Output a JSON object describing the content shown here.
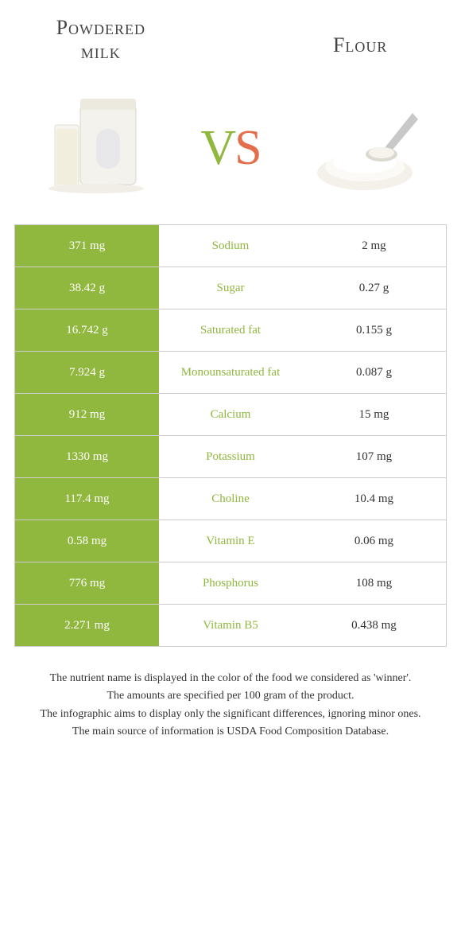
{
  "colors": {
    "left": "#90b73e",
    "right": "#e46e4b",
    "text": "#333333",
    "border": "#cccccc",
    "white": "#ffffff"
  },
  "header": {
    "left_title_line1": "Powdered",
    "left_title_line2": "milk",
    "right_title": "Flour",
    "vs_v": "v",
    "vs_s": "s"
  },
  "rows": [
    {
      "nutrient": "Sodium",
      "left": "371 mg",
      "right": "2 mg",
      "winner": "left"
    },
    {
      "nutrient": "Sugar",
      "left": "38.42 g",
      "right": "0.27 g",
      "winner": "left"
    },
    {
      "nutrient": "Saturated fat",
      "left": "16.742 g",
      "right": "0.155 g",
      "winner": "left"
    },
    {
      "nutrient": "Monounsaturated fat",
      "left": "7.924 g",
      "right": "0.087 g",
      "winner": "left"
    },
    {
      "nutrient": "Calcium",
      "left": "912 mg",
      "right": "15 mg",
      "winner": "left"
    },
    {
      "nutrient": "Potassium",
      "left": "1330 mg",
      "right": "107 mg",
      "winner": "left"
    },
    {
      "nutrient": "Choline",
      "left": "117.4 mg",
      "right": "10.4 mg",
      "winner": "left"
    },
    {
      "nutrient": "Vitamin E",
      "left": "0.58 mg",
      "right": "0.06 mg",
      "winner": "left"
    },
    {
      "nutrient": "Phosphorus",
      "left": "776 mg",
      "right": "108 mg",
      "winner": "left"
    },
    {
      "nutrient": "Vitamin B5",
      "left": "2.271 mg",
      "right": "0.438 mg",
      "winner": "left"
    }
  ],
  "footer": {
    "line1": "The nutrient name is displayed in the color of the food we considered as 'winner'.",
    "line2": "The amounts are specified per 100 gram of the product.",
    "line3": "The infographic aims to display only the significant differences, ignoring minor ones.",
    "line4": "The main source of information is USDA Food Composition Database."
  }
}
